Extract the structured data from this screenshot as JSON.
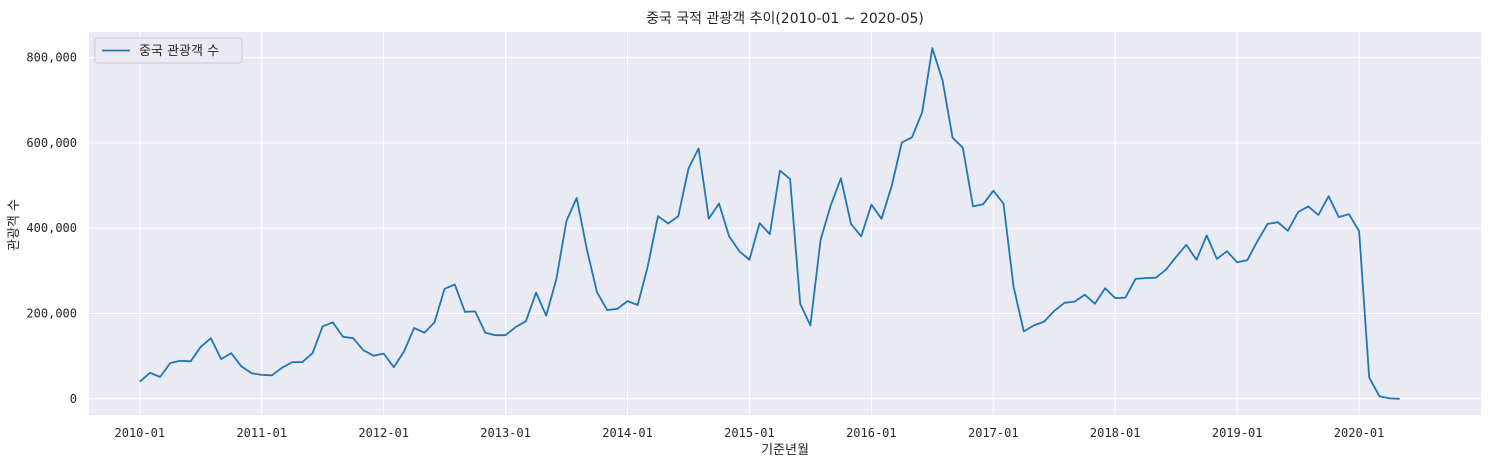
{
  "chart_data": {
    "type": "line",
    "title": "중국 국적 관광객 추이(2010-01 ~ 2020-05)",
    "xlabel": "기준년월",
    "ylabel": "관광객 수",
    "x_ticks": [
      "2010-01",
      "2011-01",
      "2012-01",
      "2013-01",
      "2014-01",
      "2015-01",
      "2016-01",
      "2017-01",
      "2018-01",
      "2019-01",
      "2020-01"
    ],
    "y_ticks": [
      "0",
      "200,000",
      "400,000",
      "600,000",
      "800,000"
    ],
    "y_tick_values": [
      0,
      200000,
      400000,
      600000,
      800000
    ],
    "ylim": [
      -38000,
      860000
    ],
    "xlim": [
      "2009-08",
      "2021-01"
    ],
    "grid": true,
    "legend_position": "top-left",
    "colors": {
      "line": "#1f77b4",
      "plot_bg": "#eaeaf2",
      "grid": "#ffffff"
    },
    "series": [
      {
        "name": "중국 관광객 수",
        "x": [
          "2010-01",
          "2010-02",
          "2010-03",
          "2010-04",
          "2010-05",
          "2010-06",
          "2010-07",
          "2010-08",
          "2010-09",
          "2010-10",
          "2010-11",
          "2010-12",
          "2011-01",
          "2011-02",
          "2011-03",
          "2011-04",
          "2011-05",
          "2011-06",
          "2011-07",
          "2011-08",
          "2011-09",
          "2011-10",
          "2011-11",
          "2011-12",
          "2012-01",
          "2012-02",
          "2012-03",
          "2012-04",
          "2012-05",
          "2012-06",
          "2012-07",
          "2012-08",
          "2012-09",
          "2012-10",
          "2012-11",
          "2012-12",
          "2013-01",
          "2013-02",
          "2013-03",
          "2013-04",
          "2013-05",
          "2013-06",
          "2013-07",
          "2013-08",
          "2013-09",
          "2013-10",
          "2013-11",
          "2013-12",
          "2014-01",
          "2014-02",
          "2014-03",
          "2014-04",
          "2014-05",
          "2014-06",
          "2014-07",
          "2014-08",
          "2014-09",
          "2014-10",
          "2014-11",
          "2014-12",
          "2015-01",
          "2015-02",
          "2015-03",
          "2015-04",
          "2015-05",
          "2015-06",
          "2015-07",
          "2015-08",
          "2015-09",
          "2015-10",
          "2015-11",
          "2015-12",
          "2016-01",
          "2016-02",
          "2016-03",
          "2016-04",
          "2016-05",
          "2016-06",
          "2016-07",
          "2016-08",
          "2016-09",
          "2016-10",
          "2016-11",
          "2016-12",
          "2017-01",
          "2017-02",
          "2017-03",
          "2017-04",
          "2017-05",
          "2017-06",
          "2017-07",
          "2017-08",
          "2017-09",
          "2017-10",
          "2017-11",
          "2017-12",
          "2018-01",
          "2018-02",
          "2018-03",
          "2018-04",
          "2018-05",
          "2018-06",
          "2018-07",
          "2018-08",
          "2018-09",
          "2018-10",
          "2018-11",
          "2018-12",
          "2019-01",
          "2019-02",
          "2019-03",
          "2019-04",
          "2019-05",
          "2019-06",
          "2019-07",
          "2019-08",
          "2019-09",
          "2019-10",
          "2019-11",
          "2019-12",
          "2020-01",
          "2020-02",
          "2020-03",
          "2020-04",
          "2020-05"
        ],
        "values": [
          40000,
          61000,
          51000,
          84000,
          89000,
          88000,
          122000,
          142000,
          93000,
          107000,
          76000,
          60000,
          56000,
          55000,
          73000,
          86000,
          86000,
          107000,
          170000,
          179000,
          145000,
          142000,
          114000,
          101000,
          106000,
          74000,
          111000,
          166000,
          155000,
          179000,
          258000,
          268000,
          204000,
          205000,
          155000,
          149000,
          149000,
          168000,
          182000,
          249000,
          195000,
          281000,
          417000,
          471000,
          350000,
          250000,
          208000,
          211000,
          229000,
          220000,
          311000,
          428000,
          411000,
          428000,
          540000,
          587000,
          422000,
          458000,
          381000,
          346000,
          326000,
          412000,
          386000,
          535000,
          515000,
          223000,
          172000,
          373000,
          453000,
          517000,
          410000,
          381000,
          455000,
          422000,
          499000,
          601000,
          613000,
          672000,
          822000,
          747000,
          612000,
          589000,
          451000,
          456000,
          488000,
          458000,
          262000,
          158000,
          172000,
          181000,
          206000,
          225000,
          228000,
          244000,
          223000,
          259000,
          236000,
          237000,
          281000,
          283000,
          284000,
          303000,
          333000,
          361000,
          326000,
          383000,
          328000,
          346000,
          320000,
          325000,
          370000,
          410000,
          414000,
          394000,
          438000,
          451000,
          431000,
          475000,
          426000,
          433000,
          393000,
          50000,
          6000,
          1000,
          0
        ]
      }
    ]
  }
}
